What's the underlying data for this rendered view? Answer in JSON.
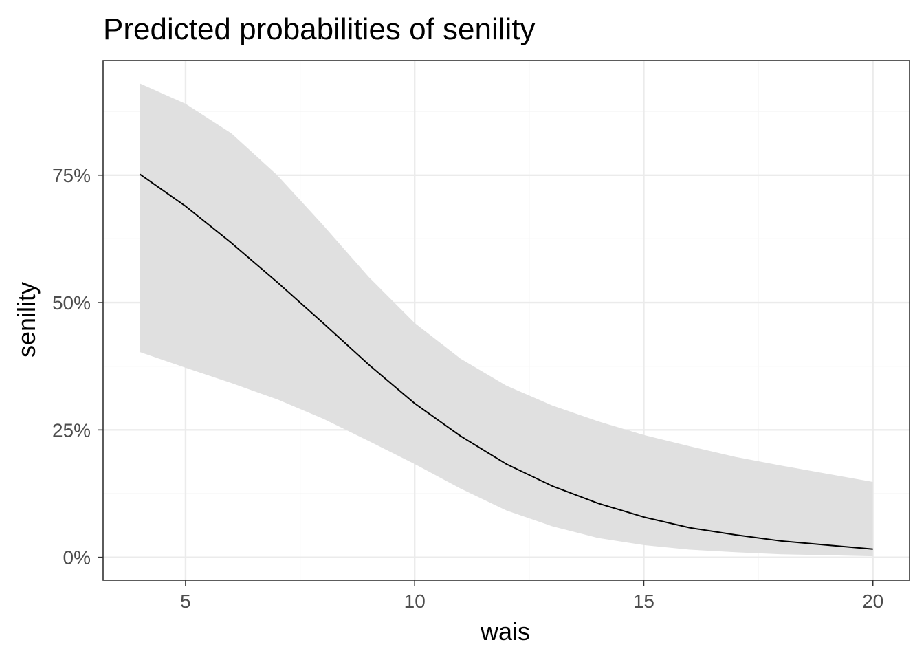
{
  "chart_data": {
    "type": "line",
    "title": "Predicted probabilities of senility",
    "xlabel": "wais",
    "ylabel": "senility",
    "xlim": [
      3.2,
      20.8
    ],
    "ylim": [
      -0.045,
      0.975
    ],
    "x_ticks": [
      5,
      10,
      15,
      20
    ],
    "x_tick_labels": [
      "5",
      "10",
      "15",
      "20"
    ],
    "y_ticks": [
      0,
      0.25,
      0.5,
      0.75
    ],
    "y_tick_labels": [
      "0%",
      "25%",
      "50%",
      "75%"
    ],
    "x_minor_ticks": [
      7.5,
      12.5,
      17.5
    ],
    "y_minor_ticks": [
      0.125,
      0.375,
      0.625,
      0.875
    ],
    "grid": true,
    "series": [
      {
        "x": [
          4,
          5,
          6,
          7,
          8,
          9,
          10,
          11,
          12,
          13,
          14,
          15,
          16,
          17,
          18,
          19,
          20
        ],
        "y": [
          0.752,
          0.689,
          0.617,
          0.54,
          0.46,
          0.378,
          0.302,
          0.238,
          0.183,
          0.14,
          0.106,
          0.079,
          0.058,
          0.044,
          0.032,
          0.024,
          0.016
        ],
        "ci_low": [
          0.403,
          0.372,
          0.342,
          0.31,
          0.272,
          0.228,
          0.183,
          0.135,
          0.092,
          0.061,
          0.038,
          0.024,
          0.015,
          0.01,
          0.006,
          0.004,
          0.002
        ],
        "ci_high": [
          0.93,
          0.89,
          0.832,
          0.75,
          0.652,
          0.55,
          0.46,
          0.39,
          0.337,
          0.298,
          0.267,
          0.24,
          0.218,
          0.197,
          0.18,
          0.164,
          0.148
        ],
        "color": "#000000",
        "ribbon_color": "#e0e0e0"
      }
    ]
  },
  "colors": {
    "background": "#ffffff",
    "panel_border": "#333333",
    "grid_major": "#ebebeb",
    "grid_minor": "#f5f5f5"
  }
}
